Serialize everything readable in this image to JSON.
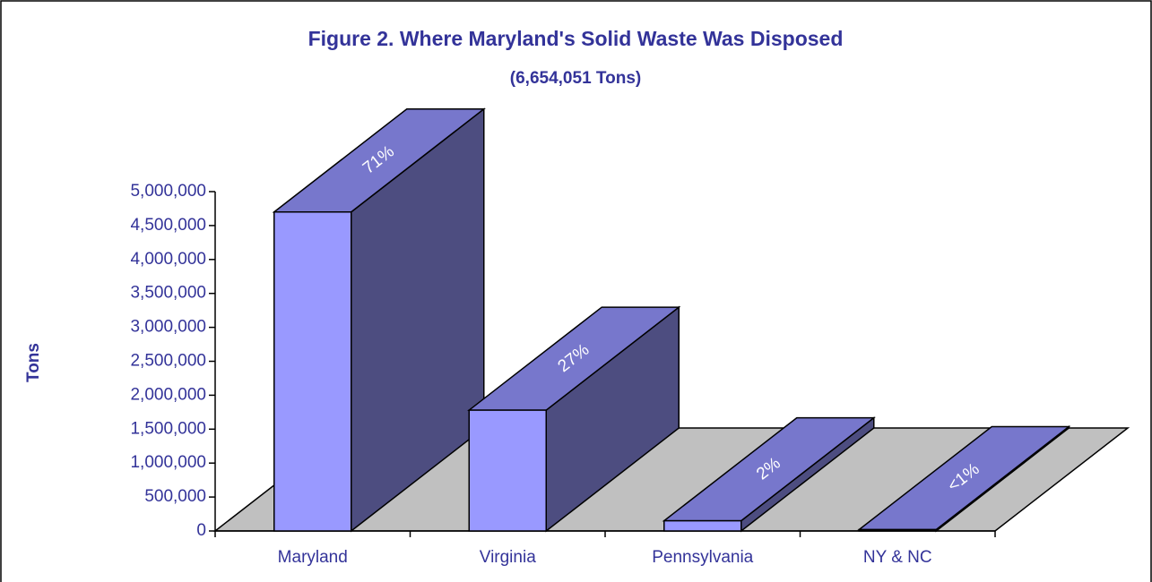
{
  "chart_data": {
    "type": "bar3d",
    "title": "Figure 2.  Where Maryland's Solid Waste Was Disposed",
    "subtitle": "(6,654,051 Tons)",
    "y_label": "Tons",
    "categories": [
      "Maryland",
      "Virginia",
      "Pennsylvania",
      "NY & NC"
    ],
    "values": [
      4700000,
      1780000,
      150000,
      20000
    ],
    "annotations": [
      "71%",
      "27%",
      "2%",
      "<1%"
    ],
    "colors": {
      "front": "#9999ff",
      "top": "#7777cc",
      "side": "#4d4d80",
      "floor": "#c0c0c0"
    },
    "ylim": [
      0,
      5000000
    ],
    "yticks": [
      0,
      {
        "value": 500000,
        "label": "500,000"
      },
      {
        "value": 1000000,
        "label": "1,000,000"
      },
      {
        "value": 1500000,
        "label": "1,500,000"
      },
      {
        "value": 2000000,
        "label": "2,000,000"
      },
      {
        "value": 2500000,
        "label": "2,500,000"
      },
      {
        "value": 3000000,
        "label": "3,000,000"
      },
      {
        "value": 3500000,
        "label": "3,500,000"
      },
      {
        "value": 4000000,
        "label": "4,000,000"
      },
      {
        "value": 4500000,
        "label": "4,500,000"
      },
      {
        "value": 5000000,
        "label": "5,000,000"
      }
    ]
  }
}
